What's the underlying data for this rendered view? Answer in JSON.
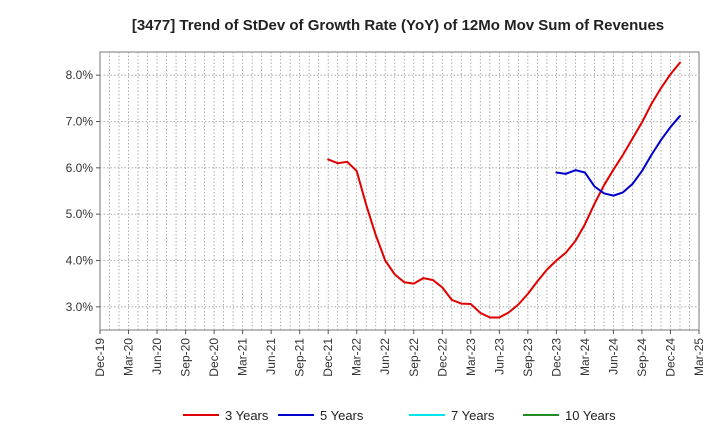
{
  "chart_data": {
    "type": "line",
    "title": "[3477]  Trend of StDev of Growth Rate (YoY) of 12Mo Mov Sum of Revenues",
    "xlabel": "",
    "ylabel": "",
    "ylim": [
      2.5,
      8.5
    ],
    "y_ticks": [
      3.0,
      4.0,
      5.0,
      6.0,
      7.0,
      8.0
    ],
    "y_tick_labels": [
      "3.0%",
      "4.0%",
      "5.0%",
      "6.0%",
      "7.0%",
      "8.0%"
    ],
    "x_tick_labels": [
      "Dec-19",
      "Mar-20",
      "Jun-20",
      "Sep-20",
      "Dec-20",
      "Mar-21",
      "Jun-21",
      "Sep-21",
      "Dec-21",
      "Mar-22",
      "Jun-22",
      "Sep-22",
      "Dec-22",
      "Mar-23",
      "Jun-23",
      "Sep-23",
      "Dec-23",
      "Mar-24",
      "Jun-24",
      "Sep-24",
      "Dec-24",
      "Mar-25"
    ],
    "x_start": "Dec-19",
    "x_months_span": 63,
    "grid": true,
    "legend_position": "bottom",
    "series": [
      {
        "name": "3 Years",
        "color": "#e00000",
        "start_month_index": 24,
        "values": [
          6.18,
          6.1,
          6.13,
          5.93,
          5.2,
          4.55,
          4.0,
          3.7,
          3.53,
          3.5,
          3.62,
          3.58,
          3.42,
          3.15,
          3.07,
          3.06,
          2.87,
          2.77,
          2.77,
          2.88,
          3.05,
          3.28,
          3.55,
          3.8,
          4.0,
          4.17,
          4.42,
          4.78,
          5.22,
          5.62,
          5.96,
          6.28,
          6.63,
          6.98,
          7.38,
          7.72,
          8.02,
          8.27
        ]
      },
      {
        "name": "5 Years",
        "color": "#0000cc",
        "start_month_index": 48,
        "values": [
          5.9,
          5.87,
          5.95,
          5.9,
          5.6,
          5.45,
          5.4,
          5.47,
          5.65,
          5.93,
          6.28,
          6.6,
          6.88,
          7.12
        ]
      },
      {
        "name": "7 Years",
        "color": "#00e5ee",
        "start_month_index": null,
        "values": []
      },
      {
        "name": "10 Years",
        "color": "#228b22",
        "start_month_index": null,
        "values": []
      }
    ]
  }
}
